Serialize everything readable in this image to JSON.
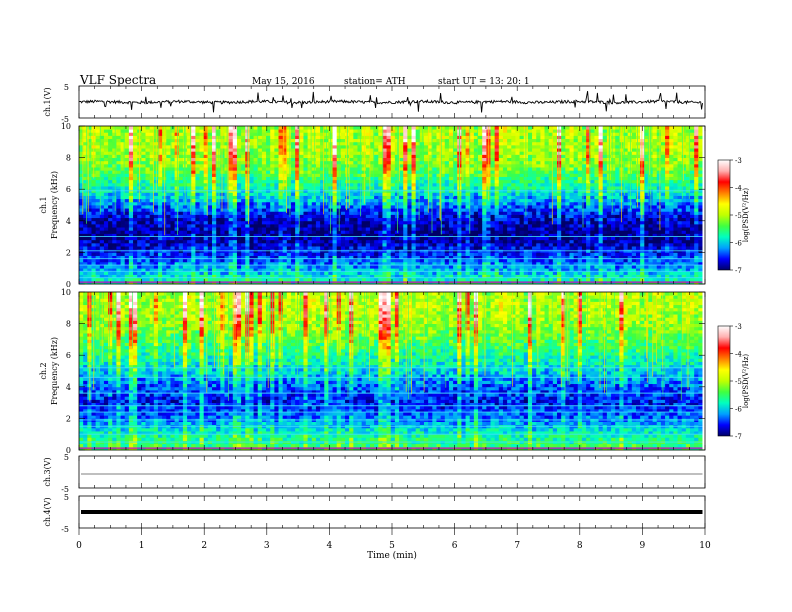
{
  "header": {
    "title": "VLF  Spectra",
    "date": "May 15, 2016",
    "station": "station= ATH",
    "start": "start  UT  =     13: 20: 1"
  },
  "colorbar": {
    "label": "log(PSD(V²/Hz)",
    "ticks": [
      "-3",
      "-4",
      "-5",
      "-6",
      "-7"
    ],
    "stops": [
      "#000066",
      "#0000ff",
      "#00a0ff",
      "#00ffc0",
      "#40ff40",
      "#c0ff00",
      "#ffff00",
      "#ff8000",
      "#ff0000",
      "#ffb0b0",
      "#ffffff"
    ]
  },
  "chart_data": [
    {
      "type": "line",
      "panel": "ch1-waveform",
      "ylabel": "ch.1(V)",
      "yticks": [
        "5",
        "-5"
      ],
      "ylim": [
        -5,
        5
      ],
      "xlim": [
        0,
        10
      ],
      "description_values": {
        "baseline": 0,
        "typical_amplitude": 0.5
      }
    },
    {
      "type": "heatmap",
      "panel": "ch1-spectrogram",
      "ylabel_top": "ch.1",
      "ylabel": "Frequency  (kHz)",
      "yticks": [
        "10",
        "8",
        "6",
        "4",
        "2",
        "0"
      ],
      "ylim": [
        0,
        10
      ],
      "xlim": [
        0,
        10
      ],
      "zlim": [
        -7,
        -3
      ],
      "band_profile_khz": [
        0,
        1,
        2,
        3,
        4,
        5,
        6,
        7,
        8,
        9,
        10
      ],
      "band_profile_logpsd": [
        -5.6,
        -6.2,
        -6.6,
        -6.9,
        -6.8,
        -6.3,
        -5.8,
        -5.4,
        -5.1,
        -5.0,
        -5.0
      ]
    },
    {
      "type": "heatmap",
      "panel": "ch2-spectrogram",
      "ylabel_top": "ch.2",
      "ylabel": "Frequency  (kHz)",
      "yticks": [
        "10",
        "8",
        "6",
        "4",
        "2",
        "0"
      ],
      "ylim": [
        0,
        10
      ],
      "xlim": [
        0,
        10
      ],
      "zlim": [
        -7,
        -3
      ],
      "band_profile_khz": [
        0,
        1,
        2,
        3,
        4,
        5,
        6,
        7,
        8,
        9,
        10
      ],
      "band_profile_logpsd": [
        -5.4,
        -5.8,
        -6.3,
        -6.6,
        -6.4,
        -6.0,
        -5.7,
        -5.4,
        -5.1,
        -5.0,
        -5.0
      ]
    },
    {
      "type": "line",
      "panel": "ch3-waveform",
      "ylabel": "ch.3(V)",
      "yticks": [
        "5",
        "-5"
      ],
      "ylim": [
        -5,
        5
      ],
      "xlim": [
        0,
        10
      ],
      "description_values": {
        "baseline": 0,
        "typical_amplitude": 0.05
      }
    },
    {
      "type": "line",
      "panel": "ch4-waveform",
      "ylabel": "ch.4(V)",
      "yticks": [
        "5",
        "-5"
      ],
      "ylim": [
        -5,
        5
      ],
      "xlim": [
        0,
        10
      ],
      "description_values": {
        "baseline": 0,
        "typical_amplitude": 0.2
      }
    }
  ],
  "xaxis": {
    "label": "Time  (min)",
    "ticks": [
      "0",
      "1",
      "2",
      "3",
      "4",
      "5",
      "6",
      "7",
      "8",
      "9",
      "10"
    ],
    "data_end": 9.8
  }
}
